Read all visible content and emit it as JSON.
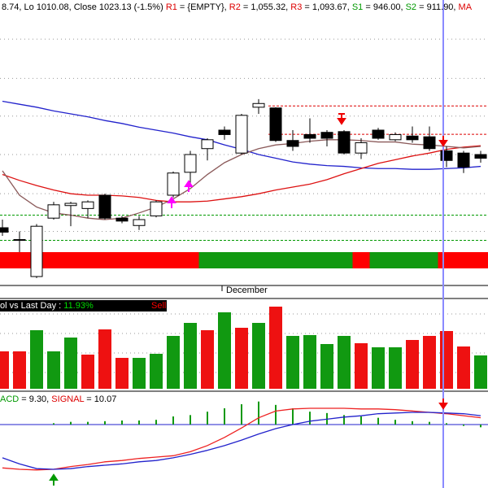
{
  "header": {
    "segments": [
      {
        "text": "8.74, Lo 1010.08, Close 1023.13 (-1.5%) ",
        "color": "#000000"
      },
      {
        "text": "R1",
        "color": "#dd0000"
      },
      {
        "text": " = {EMPTY}, ",
        "color": "#000000"
      },
      {
        "text": "R2",
        "color": "#dd0000"
      },
      {
        "text": " = 1,055.32, ",
        "color": "#000000"
      },
      {
        "text": "R3",
        "color": "#dd0000"
      },
      {
        "text": " = 1,093.67, ",
        "color": "#000000"
      },
      {
        "text": "S1",
        "color": "#009900"
      },
      {
        "text": " = 946.00, ",
        "color": "#000000"
      },
      {
        "text": "S2",
        "color": "#009900"
      },
      {
        "text": " = 911.90, ",
        "color": "#000000"
      },
      {
        "text": "MA",
        "color": "#dd0000"
      }
    ]
  },
  "chart_data": [
    {
      "type": "candlestick",
      "x_label": "December",
      "ylim": [
        852,
        1237
      ],
      "yticks": [
        924,
        975,
        1028,
        1080,
        1131,
        1184
      ],
      "grid": true,
      "open": [
        929,
        912,
        863,
        942,
        959,
        955,
        973,
        942,
        932,
        945,
        973,
        1004,
        1036,
        1061,
        1030,
        1092,
        1091,
        1047,
        1055,
        1058,
        1059,
        1030,
        1061,
        1048,
        1053,
        1052,
        1033,
        1030,
        1028
      ],
      "high": [
        940,
        924,
        934,
        964,
        964,
        966,
        975,
        945,
        945,
        966,
        1005,
        1033,
        1050,
        1066,
        1083,
        1103,
        1092,
        1061,
        1077,
        1061,
        1061,
        1050,
        1064,
        1058,
        1066,
        1066,
        1039,
        1033,
        1033
      ],
      "low": [
        918,
        896,
        861,
        940,
        931,
        942,
        940,
        935,
        926,
        943,
        970,
        989,
        1020,
        1048,
        1028,
        1083,
        1045,
        1033,
        1044,
        1039,
        1028,
        1022,
        1048,
        1046,
        1044,
        1033,
        1011,
        1003,
        1017
      ],
      "close": [
        923,
        913,
        931,
        960,
        962,
        964,
        942,
        938,
        940,
        964,
        1003,
        1028,
        1048,
        1055,
        1081,
        1097,
        1047,
        1039,
        1050,
        1050,
        1030,
        1044,
        1050,
        1055,
        1048,
        1036,
        1020,
        1011,
        1023
      ],
      "lines": [
        {
          "color": "#2222cc",
          "values": [
            1100,
            1096,
            1092,
            1087,
            1083,
            1079,
            1074,
            1070,
            1065,
            1061,
            1057,
            1052,
            1048,
            1041,
            1035,
            1028,
            1023,
            1018,
            1015,
            1013,
            1012,
            1010,
            1009,
            1009,
            1008,
            1008,
            1009,
            1010,
            1012
          ]
        },
        {
          "color": "#dd1111",
          "values": [
            1001,
            993,
            986,
            980,
            975,
            973,
            973,
            972,
            970,
            966,
            964,
            964,
            965,
            968,
            971,
            975,
            980,
            984,
            988,
            994,
            1002,
            1009,
            1016,
            1021,
            1026,
            1030,
            1035,
            1038,
            1040
          ]
        },
        {
          "color": "#8b5a5a",
          "values": [
            1006,
            973,
            957,
            949,
            946,
            942,
            940,
            942,
            949,
            957,
            968,
            982,
            1001,
            1017,
            1028,
            1036,
            1041,
            1043,
            1046,
            1048,
            1048,
            1047,
            1045,
            1045,
            1042,
            1041,
            1039,
            1037,
            1039
          ]
        }
      ],
      "levels": [
        {
          "value": 1093.67,
          "color": "#dd0000"
        },
        {
          "value": 1055.32,
          "color": "#dd0000"
        },
        {
          "value": 946.0,
          "color": "#009900"
        },
        {
          "value": 911.9,
          "color": "#009900"
        }
      ],
      "trend_colors": [
        "#ff0000",
        "#ff0000",
        "#ff0000",
        "#ff0000",
        "#ff0000",
        "#ff0000",
        "#ff0000",
        "#ff0000",
        "#ff0000",
        "#ff0000",
        "#ff0000",
        "#ff0000",
        "#119911",
        "#119911",
        "#119911",
        "#119911",
        "#119911",
        "#119911",
        "#119911",
        "#119911",
        "#119911",
        "#ff0000",
        "#119911",
        "#119911",
        "#119911",
        "#119911",
        "#ff0000",
        "#ff0000",
        "#ff0000"
      ]
    },
    {
      "type": "bar",
      "ylim": [
        0,
        110
      ],
      "yticks": [
        20,
        44,
        68,
        92
      ],
      "grid": true,
      "label": [
        {
          "text": "ol vs Last Day : ",
          "color": "#ffffff"
        },
        {
          "text": "11.93%",
          "color": "#00dd00"
        }
      ],
      "signal": {
        "text": "Sell",
        "color": "#ff0000"
      },
      "values": [
        46,
        46,
        72,
        46,
        63,
        42,
        73,
        38,
        38,
        43,
        65,
        81,
        72,
        94,
        75,
        81,
        101,
        65,
        66,
        55,
        65,
        56,
        51,
        51,
        60,
        65,
        71,
        52,
        41
      ],
      "colors": [
        "#ee1111",
        "#ee1111",
        "#119911",
        "#119911",
        "#119911",
        "#ee1111",
        "#ee1111",
        "#ee1111",
        "#119911",
        "#119911",
        "#119911",
        "#119911",
        "#ee1111",
        "#119911",
        "#ee1111",
        "#119911",
        "#ee1111",
        "#119911",
        "#119911",
        "#119911",
        "#119911",
        "#ee1111",
        "#119911",
        "#119911",
        "#ee1111",
        "#ee1111",
        "#ee1111",
        "#ee1111",
        "#119911"
      ]
    },
    {
      "type": "macd",
      "ylim": [
        -90,
        45
      ],
      "label": [
        {
          "text": "ACD",
          "color": "#009900"
        },
        {
          "text": " = 9.30, ",
          "color": "#000000"
        },
        {
          "text": "SIGNAL",
          "color": "#dd0000"
        },
        {
          "text": " = 10.07",
          "color": "#000000"
        }
      ],
      "histogram": {
        "color": "#119911",
        "values": [
          0,
          0,
          0,
          2,
          4,
          4,
          5,
          6,
          6,
          7,
          12,
          14,
          19,
          24,
          30,
          34,
          29,
          24,
          19,
          17,
          14,
          12,
          10,
          7,
          5,
          4,
          2,
          -2,
          -4
        ]
      },
      "lines": [
        {
          "color": "#ee2222",
          "values": [
            -64,
            -66,
            -67,
            -66,
            -62,
            -59,
            -55,
            -53,
            -50,
            -48,
            -46,
            -40,
            -31,
            -19,
            -5,
            10,
            20,
            23,
            24,
            24,
            24,
            23,
            23,
            22,
            20,
            18,
            16,
            13,
            10
          ]
        },
        {
          "color": "#2222cc",
          "values": [
            -49,
            -58,
            -65,
            -66,
            -65,
            -62,
            -60,
            -58,
            -55,
            -53,
            -49,
            -44,
            -38,
            -31,
            -23,
            -14,
            -6,
            0,
            5,
            8,
            11,
            13,
            16,
            17,
            18,
            18,
            17,
            16,
            13
          ]
        }
      ]
    }
  ]
}
